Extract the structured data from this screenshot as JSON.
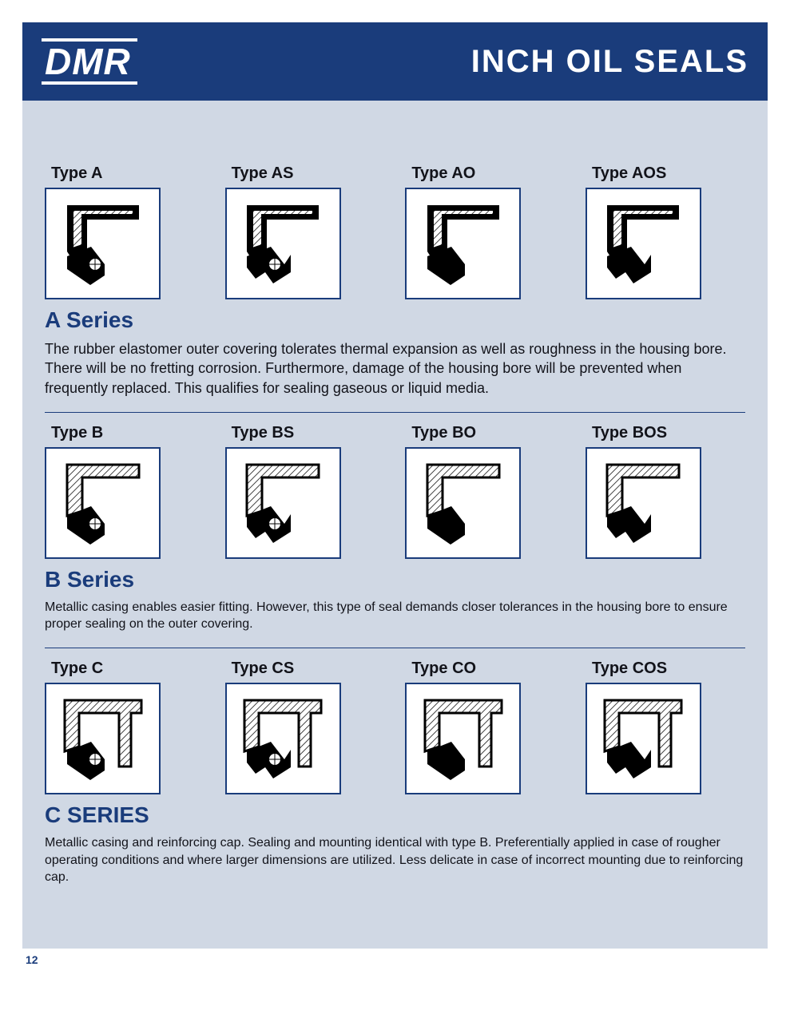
{
  "brand": "DMR",
  "title": "INCH OIL SEALS",
  "page_number": "12",
  "colors": {
    "header_bg": "#1a3c7b",
    "page_bg": "#d0d8e4",
    "accent": "#1a3c7b",
    "text": "#12131a",
    "box_border": "#1a3c7b",
    "box_bg": "#ffffff"
  },
  "series": [
    {
      "key": "a",
      "heading": "A Series",
      "description": "The rubber elastomer outer covering tolerates thermal expansion as well as roughness in the housing bore. There will be no fretting corrosion. Furthermore, damage of the housing bore will be prevented when frequently replaced. This qualifies for sealing gaseous or liquid media.",
      "desc_fontsize": 18,
      "types": [
        {
          "label": "Type A",
          "outer": "rubber",
          "spring": true,
          "dust_lip": false
        },
        {
          "label": "Type AS",
          "outer": "rubber",
          "spring": true,
          "dust_lip": true
        },
        {
          "label": "Type AO",
          "outer": "rubber",
          "spring": false,
          "dust_lip": false
        },
        {
          "label": "Type AOS",
          "outer": "rubber",
          "spring": false,
          "dust_lip": true
        }
      ]
    },
    {
      "key": "b",
      "heading": "B Series",
      "description": "Metallic casing enables easier fitting. However, this type of seal demands closer tolerances in the housing bore to ensure proper sealing on the outer covering.",
      "desc_fontsize": 16,
      "types": [
        {
          "label": "Type B",
          "outer": "metal",
          "spring": true,
          "dust_lip": false
        },
        {
          "label": "Type BS",
          "outer": "metal",
          "spring": true,
          "dust_lip": true
        },
        {
          "label": "Type BO",
          "outer": "metal",
          "spring": false,
          "dust_lip": false
        },
        {
          "label": "Type BOS",
          "outer": "metal",
          "spring": false,
          "dust_lip": true
        }
      ]
    },
    {
      "key": "c",
      "heading": "C SERIES",
      "description": "Metallic casing and reinforcing cap. Sealing and mounting identical with type B. Preferentially applied in case of rougher operating conditions and where larger dimensions are utilized. Less delicate in case of incorrect mounting due to reinforcing cap.",
      "desc_fontsize": 16,
      "types": [
        {
          "label": "Type C",
          "outer": "metal_cap",
          "spring": true,
          "dust_lip": false
        },
        {
          "label": "Type CS",
          "outer": "metal_cap",
          "spring": true,
          "dust_lip": true
        },
        {
          "label": "Type CO",
          "outer": "metal_cap",
          "spring": false,
          "dust_lip": false
        },
        {
          "label": "Type COS",
          "outer": "metal_cap",
          "spring": false,
          "dust_lip": true
        }
      ]
    }
  ]
}
